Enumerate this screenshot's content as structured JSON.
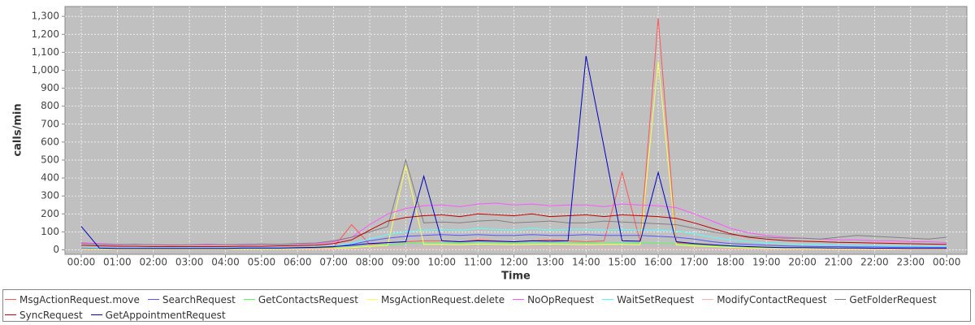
{
  "chart_data": {
    "type": "line",
    "x_label": "Time",
    "y_label": "calls/min",
    "x": [
      0,
      0.5,
      1,
      1.5,
      2,
      2.5,
      3,
      3.5,
      4,
      4.5,
      5,
      5.5,
      6,
      6.5,
      7,
      7.5,
      8,
      8.5,
      9,
      9.5,
      10,
      10.5,
      11,
      11.5,
      12,
      12.5,
      13,
      13.5,
      14,
      14.5,
      15,
      15.5,
      16,
      16.5,
      17,
      17.5,
      18,
      18.5,
      19,
      19.5,
      20,
      20.5,
      21,
      21.5,
      22,
      22.5,
      23,
      23.5,
      24
    ],
    "xlim": [
      -0.45,
      24.56
    ],
    "xticks": [
      {
        "value": 0,
        "label": "00:00"
      },
      {
        "value": 1,
        "label": "01:00"
      },
      {
        "value": 2,
        "label": "02:00"
      },
      {
        "value": 3,
        "label": "03:00"
      },
      {
        "value": 4,
        "label": "04:00"
      },
      {
        "value": 5,
        "label": "05:00"
      },
      {
        "value": 6,
        "label": "06:00"
      },
      {
        "value": 7,
        "label": "07:00"
      },
      {
        "value": 8,
        "label": "08:00"
      },
      {
        "value": 9,
        "label": "09:00"
      },
      {
        "value": 10,
        "label": "10:00"
      },
      {
        "value": 11,
        "label": "11:00"
      },
      {
        "value": 12,
        "label": "12:00"
      },
      {
        "value": 13,
        "label": "13:00"
      },
      {
        "value": 14,
        "label": "14:00"
      },
      {
        "value": 15,
        "label": "15:00"
      },
      {
        "value": 16,
        "label": "16:00"
      },
      {
        "value": 17,
        "label": "17:00"
      },
      {
        "value": 18,
        "label": "18:00"
      },
      {
        "value": 19,
        "label": "19:00"
      },
      {
        "value": 20,
        "label": "20:00"
      },
      {
        "value": 21,
        "label": "21:00"
      },
      {
        "value": 22,
        "label": "22:00"
      },
      {
        "value": 23,
        "label": "23:00"
      },
      {
        "value": 24,
        "label": "00:00"
      }
    ],
    "ylim": [
      -25,
      1355
    ],
    "yticks": [
      0,
      100,
      200,
      300,
      400,
      500,
      600,
      700,
      800,
      900,
      {
        "value": 1000,
        "label": "1,000"
      },
      {
        "value": 1100,
        "label": "1,100"
      },
      {
        "value": 1200,
        "label": "1,200"
      },
      {
        "value": 1300,
        "label": "1,300"
      }
    ],
    "grid": true,
    "plot_background": "#c0c0c0",
    "series": [
      {
        "name": "MsgActionRequest.move",
        "color": "#ff5555",
        "values": [
          8,
          6,
          5,
          5,
          5,
          5,
          5,
          5,
          5,
          6,
          6,
          6,
          8,
          10,
          15,
          140,
          30,
          40,
          45,
          50,
          50,
          45,
          55,
          50,
          45,
          50,
          55,
          50,
          45,
          50,
          430,
          45,
          1290,
          40,
          32,
          25,
          18,
          14,
          12,
          10,
          10,
          9,
          8,
          8,
          7,
          7,
          6,
          6,
          6
        ]
      },
      {
        "name": "SearchRequest",
        "color": "#5555ff",
        "values": [
          12,
          10,
          8,
          8,
          8,
          8,
          8,
          8,
          8,
          10,
          10,
          10,
          12,
          14,
          18,
          30,
          50,
          65,
          75,
          80,
          85,
          80,
          85,
          80,
          80,
          85,
          80,
          80,
          85,
          80,
          80,
          80,
          75,
          70,
          60,
          45,
          35,
          30,
          26,
          22,
          20,
          18,
          18,
          16,
          16,
          15,
          15,
          14,
          14
        ]
      },
      {
        "name": "GetContactsRequest",
        "color": "#55ff55",
        "values": [
          5,
          5,
          4,
          4,
          4,
          4,
          4,
          4,
          4,
          5,
          5,
          5,
          6,
          7,
          10,
          15,
          22,
          30,
          35,
          40,
          40,
          38,
          42,
          40,
          38,
          42,
          40,
          40,
          42,
          38,
          40,
          38,
          36,
          34,
          28,
          22,
          18,
          15,
          12,
          10,
          10,
          9,
          9,
          8,
          8,
          8,
          7,
          7,
          7
        ]
      },
      {
        "name": "MsgActionRequest.delete",
        "color": "#ffff55",
        "values": [
          3,
          3,
          2,
          2,
          2,
          2,
          2,
          2,
          2,
          3,
          3,
          3,
          4,
          5,
          8,
          12,
          20,
          25,
          470,
          30,
          30,
          28,
          32,
          30,
          28,
          30,
          32,
          30,
          28,
          30,
          30,
          28,
          1050,
          28,
          22,
          18,
          14,
          10,
          8,
          6,
          6,
          5,
          5,
          4,
          4,
          4,
          3,
          3,
          3
        ]
      },
      {
        "name": "NoOpRequest",
        "color": "#ff55ff",
        "values": [
          40,
          35,
          30,
          30,
          28,
          28,
          27,
          27,
          28,
          28,
          30,
          30,
          32,
          35,
          45,
          70,
          140,
          200,
          230,
          245,
          250,
          240,
          255,
          260,
          250,
          255,
          245,
          250,
          250,
          240,
          255,
          250,
          245,
          235,
          200,
          160,
          120,
          95,
          80,
          70,
          65,
          60,
          55,
          55,
          50,
          50,
          45,
          45,
          40
        ]
      },
      {
        "name": "WaitSetRequest",
        "color": "#55ffff",
        "values": [
          15,
          12,
          10,
          10,
          10,
          10,
          10,
          10,
          10,
          12,
          12,
          12,
          14,
          15,
          20,
          35,
          60,
          85,
          100,
          110,
          115,
          110,
          120,
          115,
          110,
          120,
          110,
          115,
          115,
          110,
          115,
          110,
          110,
          105,
          90,
          70,
          55,
          45,
          38,
          34,
          30,
          28,
          26,
          25,
          24,
          22,
          22,
          20,
          20
        ]
      },
      {
        "name": "ModifyContactRequest",
        "color": "#ffafaf",
        "values": [
          2,
          2,
          1,
          1,
          1,
          1,
          1,
          1,
          1,
          2,
          2,
          2,
          2,
          3,
          4,
          5,
          6,
          8,
          8,
          8,
          8,
          8,
          9,
          8,
          8,
          9,
          8,
          8,
          9,
          8,
          8,
          8,
          8,
          7,
          6,
          5,
          4,
          3,
          3,
          2,
          2,
          2,
          2,
          2,
          2,
          2,
          1,
          1,
          1
        ]
      },
      {
        "name": "GetFolderRequest",
        "color": "#808080",
        "values": [
          35,
          30,
          28,
          30,
          28,
          26,
          28,
          30,
          28,
          30,
          32,
          30,
          35,
          38,
          50,
          70,
          100,
          130,
          500,
          150,
          155,
          150,
          160,
          165,
          150,
          155,
          160,
          150,
          150,
          160,
          155,
          150,
          145,
          140,
          120,
          100,
          85,
          75,
          70,
          65,
          65,
          60,
          70,
          80,
          75,
          70,
          65,
          60,
          70
        ]
      },
      {
        "name": "SyncRequest",
        "color": "#c00000",
        "values": [
          25,
          22,
          20,
          20,
          18,
          18,
          18,
          18,
          18,
          20,
          20,
          22,
          24,
          26,
          35,
          55,
          110,
          160,
          180,
          190,
          195,
          185,
          200,
          195,
          190,
          200,
          185,
          190,
          195,
          185,
          195,
          190,
          185,
          175,
          150,
          120,
          90,
          70,
          60,
          52,
          48,
          45,
          42,
          40,
          38,
          36,
          34,
          32,
          30
        ]
      },
      {
        "name": "GetAppointmentRequest",
        "color": "#0000c0",
        "values": [
          130,
          10,
          8,
          8,
          8,
          8,
          8,
          8,
          8,
          10,
          10,
          10,
          12,
          14,
          18,
          25,
          35,
          40,
          45,
          410,
          50,
          45,
          50,
          48,
          45,
          50,
          48,
          50,
          1080,
          570,
          50,
          48,
          430,
          45,
          35,
          28,
          22,
          18,
          15,
          12,
          12,
          11,
          10,
          10,
          9,
          9,
          8,
          8,
          8
        ]
      }
    ]
  }
}
